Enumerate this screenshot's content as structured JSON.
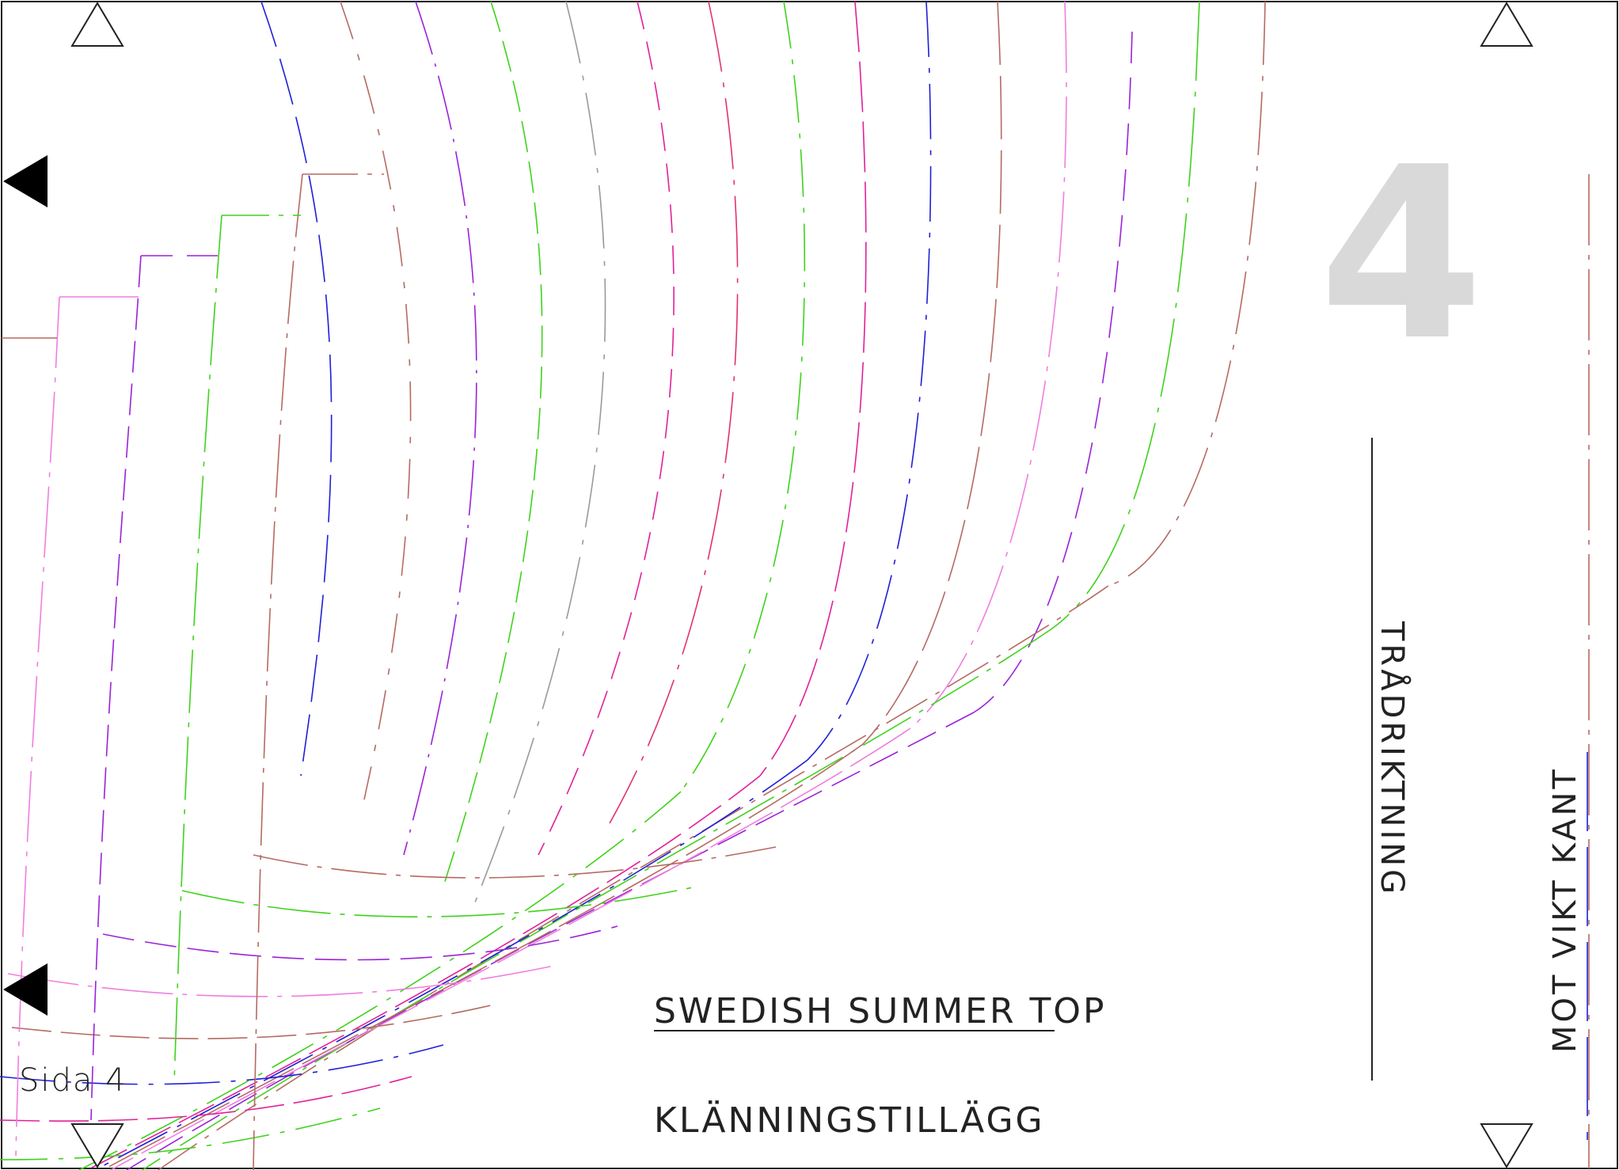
{
  "page": {
    "title": "SWEDISH SUMMER TOP",
    "subtitle": "KLÄNNINGSTILLÄGG",
    "page_label": "Sida 4",
    "page_number": "4",
    "grain_label": "TRÅDRIKTNING",
    "fold_label": "MOT VIKT KANT"
  },
  "colors": {
    "border": "#222222",
    "ink": "#222222",
    "page_number": "#d9d9d9",
    "size_lines": [
      "#1f1fd6",
      "#b56a62",
      "#9b22d8",
      "#3fd21c",
      "#9a9a9a",
      "#e0219a",
      "#e0336b",
      "#f07ee0"
    ]
  },
  "icons": [
    "triangle-outline-icon",
    "triangle-filled-icon",
    "triangle-down-outline-icon"
  ]
}
